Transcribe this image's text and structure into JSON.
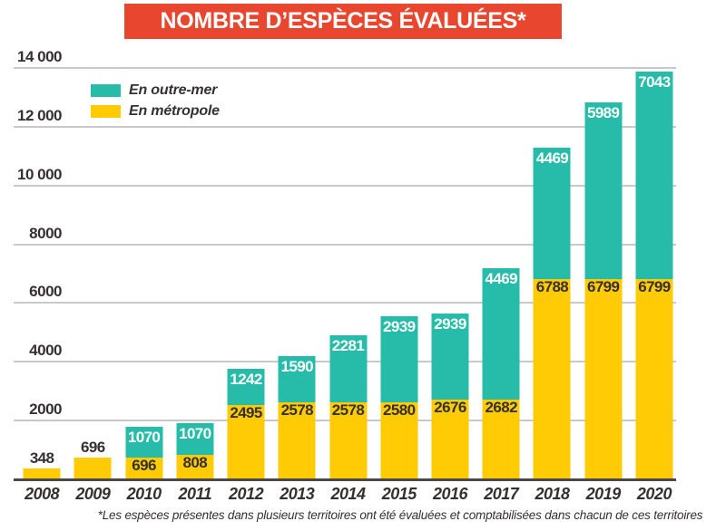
{
  "title": "NOMBRE D’ESPÈCES ÉVALUÉES*",
  "legend": [
    {
      "label": "En outre-mer",
      "color": "#26BCA9"
    },
    {
      "label": "En métropole",
      "color": "#FFCB05"
    }
  ],
  "footnote": "*Les espèces présentes dans plusieurs territoires ont été évaluées et comptabilisées dans chacun de ces territoires",
  "colors": {
    "banner": "#E8462F",
    "outremer": "#26BCA9",
    "metropole": "#FFCB05",
    "gridline": "#C9C9C9",
    "axis": "#4A4948",
    "dark_text": "#353130",
    "light_text": "#FFFFFF"
  },
  "chart_data": {
    "type": "bar",
    "stacked": true,
    "title": "NOMBRE D’ESPÈCES ÉVALUÉES*",
    "xlabel": "",
    "ylabel": "",
    "ylim": [
      0,
      14000
    ],
    "grid": true,
    "legend_position": "top-left",
    "categories": [
      "2008",
      "2009",
      "2010",
      "2011",
      "2012",
      "2013",
      "2014",
      "2015",
      "2016",
      "2017",
      "2018",
      "2019",
      "2020"
    ],
    "series": [
      {
        "name": "En métropole",
        "color": "#FFCB05",
        "values": [
          348,
          696,
          696,
          808,
          2495,
          2578,
          2578,
          2580,
          2676,
          2682,
          6788,
          6799,
          6799
        ]
      },
      {
        "name": "En outre-mer",
        "color": "#26BCA9",
        "values": [
          0,
          0,
          1070,
          1070,
          1242,
          1590,
          2281,
          2939,
          2939,
          4469,
          4469,
          5989,
          7043
        ]
      }
    ],
    "y_ticks": [
      {
        "value": 14000,
        "label": "14 000"
      },
      {
        "value": 12000,
        "label": "12 000"
      },
      {
        "value": 10000,
        "label": "10 000"
      },
      {
        "value": 8000,
        "label": "8000"
      },
      {
        "value": 6000,
        "label": "6000"
      },
      {
        "value": 4000,
        "label": "4000"
      },
      {
        "value": 2000,
        "label": "2000"
      }
    ]
  }
}
